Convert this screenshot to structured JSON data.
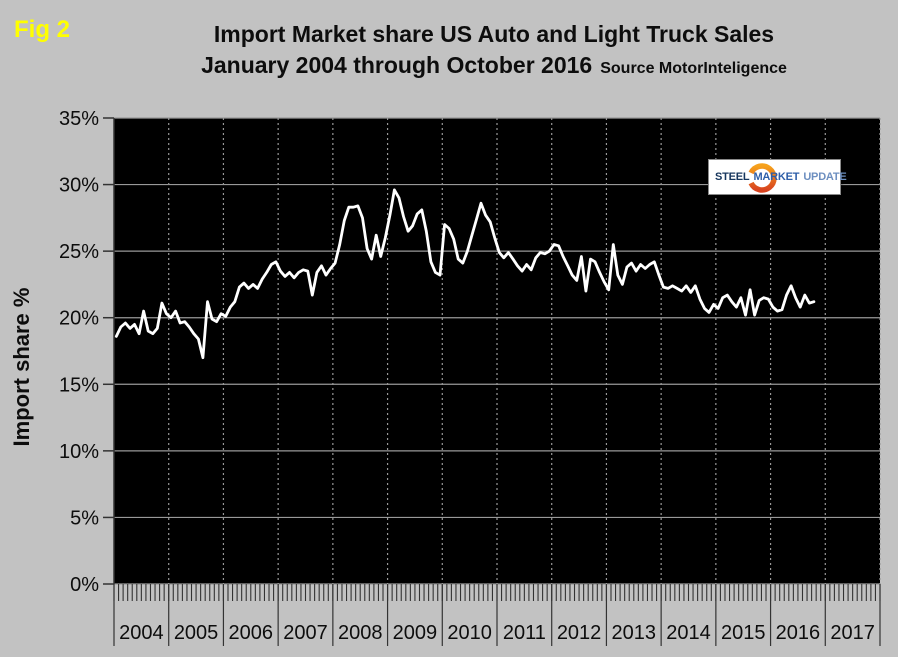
{
  "figure_label": "Fig 2",
  "title": {
    "line1": "Import Market share US Auto and Light Truck Sales",
    "line2": "January 2004 through October 2016",
    "source": "Source MotorInteligence"
  },
  "logo": {
    "word1": "STEEL",
    "word2": "MARKET",
    "word3": "UPDATE"
  },
  "colors": {
    "background": "#c2c2c2",
    "plot_background": "#000000",
    "line": "#ffffff",
    "grid": "#999999",
    "axis": "#333333",
    "figure_label": "#ffff00",
    "title_text": "#0d0d0d",
    "logo_steel": "#17365d",
    "logo_market": "#2e5ea8",
    "logo_update": "#6d8fc0",
    "logo_swoosh_top": "#f6a21c",
    "logo_swoosh_bottom": "#d8431f"
  },
  "chart_data": {
    "type": "line",
    "title": "Import Market share US Auto and Light Truck Sales January 2004 through October 2016",
    "xlabel": "",
    "ylabel": "Import share %",
    "ylim": [
      0,
      35
    ],
    "y_ticks": [
      0,
      5,
      10,
      15,
      20,
      25,
      30,
      35
    ],
    "y_tick_suffix": "%",
    "x_years": [
      2004,
      2005,
      2006,
      2007,
      2008,
      2009,
      2010,
      2011,
      2012,
      2013,
      2014,
      2015,
      2016,
      2017
    ],
    "x_start": "2004-01",
    "x_end": "2016-10",
    "grid": {
      "horizontal": "solid",
      "vertical": "dotted"
    },
    "legend": "none",
    "series": [
      {
        "name": "Import share %",
        "color": "#ffffff",
        "monthly_values": [
          18.6,
          19.3,
          19.6,
          19.2,
          19.5,
          18.8,
          20.5,
          19.0,
          18.8,
          19.2,
          21.1,
          20.3,
          20.0,
          20.5,
          19.6,
          19.7,
          19.3,
          18.8,
          18.4,
          17.0,
          21.2,
          19.9,
          19.7,
          20.3,
          20.1,
          20.8,
          21.2,
          22.3,
          22.6,
          22.2,
          22.5,
          22.2,
          22.9,
          23.4,
          24.0,
          24.2,
          23.5,
          23.1,
          23.4,
          23.0,
          23.4,
          23.6,
          23.5,
          21.7,
          23.4,
          23.9,
          23.2,
          23.7,
          24.1,
          25.5,
          27.3,
          28.3,
          28.3,
          28.4,
          27.5,
          25.2,
          24.4,
          26.2,
          24.6,
          26.0,
          27.7,
          29.6,
          29.0,
          27.6,
          26.5,
          26.9,
          27.8,
          28.1,
          26.5,
          24.2,
          23.4,
          23.2,
          27.0,
          26.7,
          25.9,
          24.4,
          24.1,
          25.0,
          26.2,
          27.4,
          28.6,
          27.7,
          27.2,
          26.0,
          24.9,
          24.5,
          24.9,
          24.4,
          23.9,
          23.5,
          24.0,
          23.6,
          24.5,
          24.9,
          24.8,
          25.0,
          25.5,
          25.4,
          24.6,
          23.9,
          23.2,
          22.8,
          24.6,
          22.0,
          24.4,
          24.2,
          23.4,
          22.7,
          22.1,
          25.5,
          23.2,
          22.5,
          23.8,
          24.1,
          23.5,
          24.0,
          23.7,
          24.0,
          24.2,
          23.2,
          22.3,
          22.2,
          22.4,
          22.2,
          22.0,
          22.4,
          21.9,
          22.4,
          21.4,
          20.7,
          20.4,
          21.0,
          20.7,
          21.5,
          21.7,
          21.2,
          20.8,
          21.5,
          20.2,
          22.1,
          20.2,
          21.3,
          21.5,
          21.4,
          20.8,
          20.5,
          20.6,
          21.7,
          22.4,
          21.5,
          20.8,
          21.7,
          21.1,
          21.2
        ]
      }
    ]
  }
}
